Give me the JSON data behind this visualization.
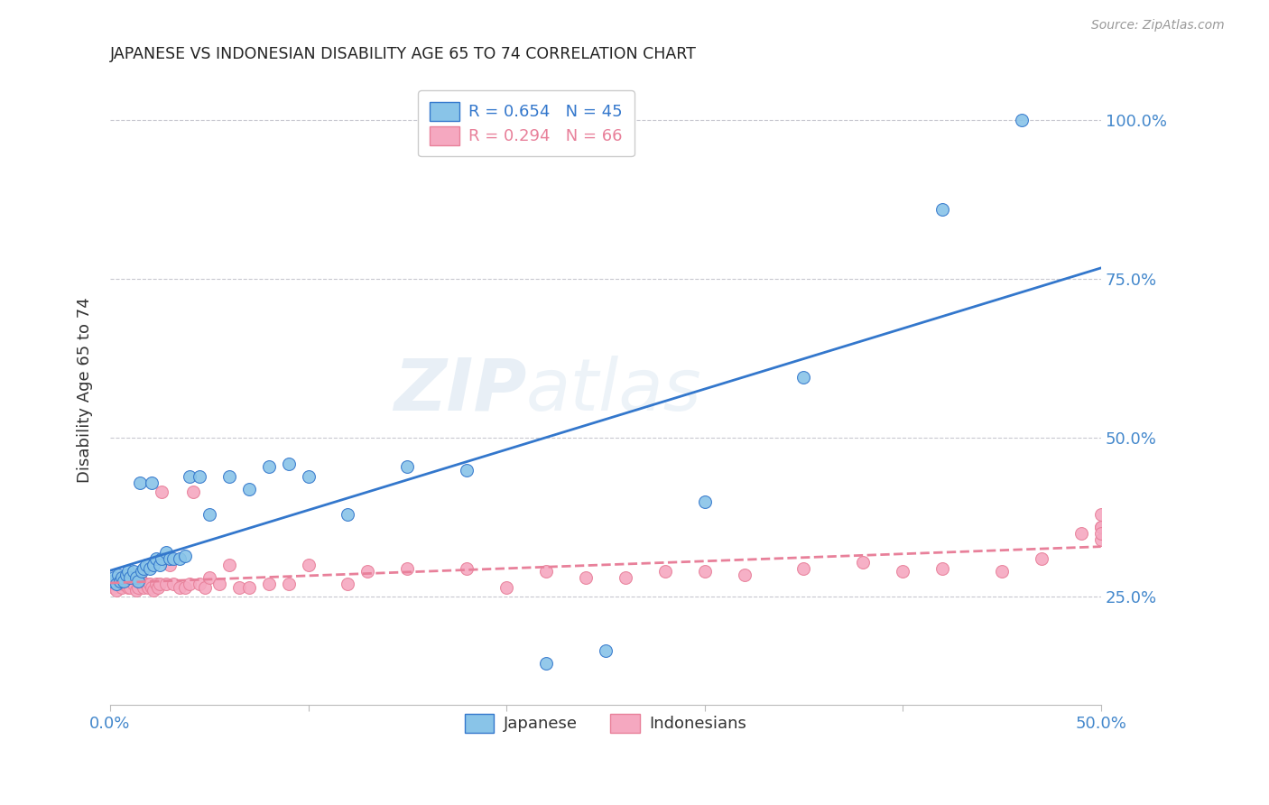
{
  "title": "JAPANESE VS INDONESIAN DISABILITY AGE 65 TO 74 CORRELATION CHART",
  "source": "Source: ZipAtlas.com",
  "ylabel": "Disability Age 65 to 74",
  "japanese_color": "#89C4E8",
  "indonesian_color": "#F5A8C0",
  "trend_japanese_color": "#3377CC",
  "trend_indonesian_color": "#E8809A",
  "watermark": "ZIPatlas",
  "japanese_R": "0.654",
  "japanese_N": "45",
  "indonesian_R": "0.294",
  "indonesian_N": "66",
  "xlim": [
    0.0,
    0.5
  ],
  "ylim": [
    0.08,
    1.07
  ],
  "yticks": [
    0.25,
    0.5,
    0.75,
    1.0
  ],
  "xtick_positions": [
    0.0,
    0.1,
    0.2,
    0.3,
    0.4,
    0.5
  ],
  "japanese_x": [
    0.001,
    0.002,
    0.003,
    0.004,
    0.005,
    0.006,
    0.007,
    0.008,
    0.009,
    0.01,
    0.012,
    0.013,
    0.014,
    0.015,
    0.016,
    0.017,
    0.018,
    0.02,
    0.021,
    0.022,
    0.023,
    0.025,
    0.026,
    0.028,
    0.03,
    0.032,
    0.035,
    0.038,
    0.04,
    0.045,
    0.05,
    0.06,
    0.07,
    0.08,
    0.09,
    0.1,
    0.12,
    0.15,
    0.18,
    0.22,
    0.25,
    0.3,
    0.35,
    0.42,
    0.46
  ],
  "japanese_y": [
    0.275,
    0.28,
    0.27,
    0.285,
    0.275,
    0.28,
    0.275,
    0.285,
    0.29,
    0.28,
    0.29,
    0.28,
    0.275,
    0.43,
    0.29,
    0.295,
    0.3,
    0.295,
    0.43,
    0.3,
    0.31,
    0.3,
    0.31,
    0.32,
    0.31,
    0.31,
    0.31,
    0.315,
    0.44,
    0.44,
    0.38,
    0.44,
    0.42,
    0.455,
    0.46,
    0.44,
    0.38,
    0.455,
    0.45,
    0.145,
    0.165,
    0.4,
    0.595,
    0.86,
    1.0
  ],
  "indonesian_x": [
    0.001,
    0.002,
    0.003,
    0.004,
    0.005,
    0.006,
    0.007,
    0.008,
    0.009,
    0.01,
    0.011,
    0.012,
    0.013,
    0.014,
    0.015,
    0.016,
    0.017,
    0.018,
    0.019,
    0.02,
    0.021,
    0.022,
    0.023,
    0.024,
    0.025,
    0.026,
    0.028,
    0.03,
    0.032,
    0.035,
    0.038,
    0.04,
    0.042,
    0.045,
    0.048,
    0.05,
    0.055,
    0.06,
    0.065,
    0.07,
    0.08,
    0.09,
    0.1,
    0.12,
    0.13,
    0.15,
    0.18,
    0.2,
    0.22,
    0.24,
    0.26,
    0.28,
    0.3,
    0.32,
    0.35,
    0.38,
    0.4,
    0.42,
    0.45,
    0.47,
    0.49,
    0.5,
    0.5,
    0.5,
    0.5,
    0.5
  ],
  "indonesian_y": [
    0.27,
    0.265,
    0.26,
    0.27,
    0.28,
    0.265,
    0.27,
    0.275,
    0.265,
    0.265,
    0.275,
    0.27,
    0.26,
    0.265,
    0.28,
    0.27,
    0.265,
    0.27,
    0.265,
    0.27,
    0.265,
    0.26,
    0.27,
    0.265,
    0.27,
    0.415,
    0.27,
    0.3,
    0.27,
    0.265,
    0.265,
    0.27,
    0.415,
    0.27,
    0.265,
    0.28,
    0.27,
    0.3,
    0.265,
    0.265,
    0.27,
    0.27,
    0.3,
    0.27,
    0.29,
    0.295,
    0.295,
    0.265,
    0.29,
    0.28,
    0.28,
    0.29,
    0.29,
    0.285,
    0.295,
    0.305,
    0.29,
    0.295,
    0.29,
    0.31,
    0.35,
    0.38,
    0.36,
    0.34,
    0.36,
    0.35
  ]
}
